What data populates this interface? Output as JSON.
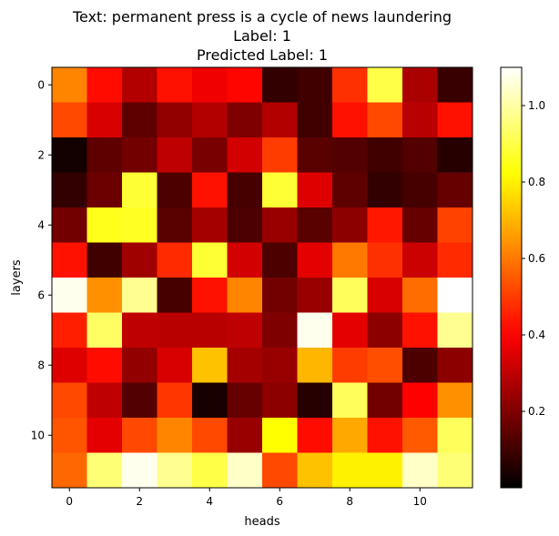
{
  "chart_data": {
    "type": "heatmap",
    "title_lines": [
      "Text: permanent press is a cycle of news laundering",
      "Label: 1",
      "Predicted Label: 1"
    ],
    "xlabel": "heads",
    "ylabel": "layers",
    "x_ticks": [
      0,
      2,
      4,
      6,
      8,
      10
    ],
    "y_ticks": [
      0,
      2,
      4,
      6,
      8,
      10
    ],
    "n_rows": 12,
    "n_cols": 12,
    "colormap": "hot",
    "vmin": 0.0,
    "vmax": 1.1,
    "colorbar_ticks": [
      0.2,
      0.4,
      0.6,
      0.8,
      1.0
    ],
    "colorbar_tick_labels": [
      "0.2",
      "0.4",
      "0.6",
      "0.8",
      "1.0"
    ],
    "values": [
      [
        0.62,
        0.42,
        0.28,
        0.43,
        0.38,
        0.41,
        0.08,
        0.1,
        0.48,
        0.9,
        0.27,
        0.09
      ],
      [
        0.52,
        0.34,
        0.15,
        0.23,
        0.28,
        0.2,
        0.28,
        0.1,
        0.43,
        0.52,
        0.29,
        0.43
      ],
      [
        0.03,
        0.15,
        0.18,
        0.3,
        0.19,
        0.33,
        0.5,
        0.14,
        0.13,
        0.1,
        0.13,
        0.06
      ],
      [
        0.08,
        0.17,
        0.88,
        0.12,
        0.43,
        0.11,
        0.88,
        0.35,
        0.15,
        0.08,
        0.11,
        0.16
      ],
      [
        0.18,
        0.85,
        0.86,
        0.14,
        0.26,
        0.12,
        0.24,
        0.14,
        0.22,
        0.44,
        0.16,
        0.51
      ],
      [
        0.43,
        0.1,
        0.25,
        0.47,
        0.88,
        0.33,
        0.12,
        0.36,
        0.6,
        0.48,
        0.32,
        0.47
      ],
      [
        1.08,
        0.64,
        0.98,
        0.11,
        0.43,
        0.62,
        0.18,
        0.24,
        0.92,
        0.34,
        0.58,
        1.1
      ],
      [
        0.45,
        0.93,
        0.3,
        0.29,
        0.29,
        0.3,
        0.2,
        1.08,
        0.36,
        0.22,
        0.43,
        0.98
      ],
      [
        0.35,
        0.42,
        0.23,
        0.34,
        0.72,
        0.26,
        0.24,
        0.7,
        0.5,
        0.53,
        0.12,
        0.22
      ],
      [
        0.52,
        0.3,
        0.13,
        0.49,
        0.04,
        0.16,
        0.22,
        0.06,
        0.92,
        0.18,
        0.4,
        0.64
      ],
      [
        0.54,
        0.36,
        0.52,
        0.62,
        0.52,
        0.24,
        0.82,
        0.42,
        0.68,
        0.43,
        0.55,
        0.92
      ],
      [
        0.57,
        0.95,
        1.08,
        0.98,
        0.9,
        1.04,
        0.52,
        0.72,
        0.8,
        0.8,
        1.04,
        0.95
      ]
    ]
  }
}
